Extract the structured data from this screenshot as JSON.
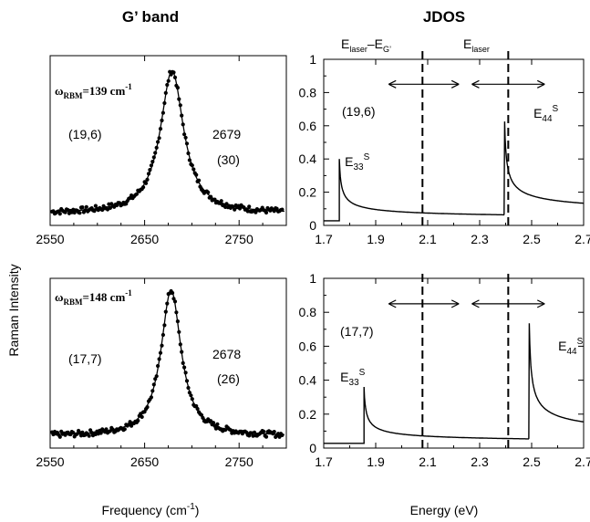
{
  "titles": {
    "left": "G’ band",
    "right": "JDOS"
  },
  "ylabel_shared": "Raman Intensity",
  "chart_data": [
    {
      "id": "gband-top",
      "type": "scatter",
      "title": "G’ band",
      "xlabel": "",
      "ylabel": "",
      "xlim": [
        2550,
        2800
      ],
      "ylim": [
        0,
        1
      ],
      "xticks": [
        2550,
        2650,
        2750
      ],
      "peak": {
        "center": 2679,
        "fwhm": 30,
        "amplitude": 0.84,
        "baseline": 0.07
      },
      "annotations": {
        "rbm_prefix": "ω",
        "rbm_sub": "RBM",
        "rbm_value": "=139 cm",
        "rbm_sup": "-1",
        "index": "(19,6)",
        "freq": "2679",
        "width": "(30)"
      }
    },
    {
      "id": "jdos-top",
      "type": "line",
      "title": "JDOS",
      "xlabel": "",
      "ylabel": "",
      "xlim": [
        1.7,
        2.7
      ],
      "ylim": [
        0,
        1
      ],
      "xticks": [
        "1.7",
        "1.9",
        "2.1",
        "2.3",
        "2.5",
        "2.7"
      ],
      "yticks": [
        "0",
        "0.2",
        "0.4",
        "0.6",
        "0.8",
        "1"
      ],
      "transitions": [
        {
          "E": 1.76,
          "height": 0.4,
          "label": "E",
          "sub": "33",
          "sup": "S"
        },
        {
          "E": 2.395,
          "height": 0.67,
          "label": "E",
          "sub": "44",
          "sup": "S"
        }
      ],
      "baseline": 0.035,
      "dashed_lines": [
        2.08,
        2.41
      ],
      "arrows": [
        [
          1.95,
          2.22
        ],
        [
          2.27,
          2.55
        ]
      ],
      "labels": {
        "el_left": "E",
        "el_left_sub": "laser",
        "el_minus": "–E",
        "el_minus_sub": "G’",
        "el_right": "E",
        "el_right_sub": "laser"
      },
      "index": "(19,6)"
    },
    {
      "id": "gband-bottom",
      "type": "scatter",
      "xlabel": "Frequency (cm",
      "xlabel_sup": "-1",
      "xlabel_close": ")",
      "ylabel": "",
      "xlim": [
        2550,
        2800
      ],
      "ylim": [
        0,
        1
      ],
      "xticks": [
        2550,
        2650,
        2750
      ],
      "peak": {
        "center": 2678,
        "fwhm": 26,
        "amplitude": 0.86,
        "baseline": 0.07
      },
      "annotations": {
        "rbm_prefix": "ω",
        "rbm_sub": "RBM",
        "rbm_value": "=148 cm",
        "rbm_sup": "-1",
        "index": "(17,7)",
        "freq": "2678",
        "width": "(26)"
      }
    },
    {
      "id": "jdos-bottom",
      "type": "line",
      "xlabel": "Energy (eV)",
      "ylabel": "",
      "xlim": [
        1.7,
        2.7
      ],
      "ylim": [
        0,
        1
      ],
      "xticks": [
        "1.7",
        "1.9",
        "2.1",
        "2.3",
        "2.5",
        "2.7"
      ],
      "yticks": [
        "0",
        "0.2",
        "0.4",
        "0.6",
        "0.8",
        "1"
      ],
      "transitions": [
        {
          "E": 1.855,
          "height": 0.36,
          "label": "E",
          "sub": "33",
          "sup": "S"
        },
        {
          "E": 2.49,
          "height": 0.8,
          "label": "E",
          "sub": "44",
          "sup": "S"
        }
      ],
      "baseline": 0.028,
      "dashed_lines": [
        2.08,
        2.41
      ],
      "arrows": [
        [
          1.95,
          2.22
        ],
        [
          2.27,
          2.55
        ]
      ],
      "index": "(17,7)"
    }
  ]
}
